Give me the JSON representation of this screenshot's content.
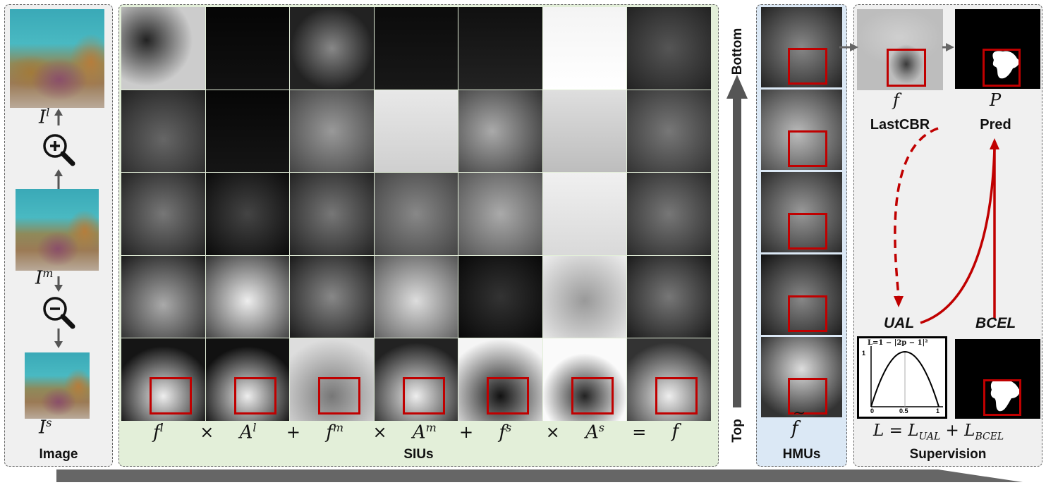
{
  "image_panel": {
    "caption": "Image",
    "labels": {
      "large": "I",
      "large_sup": "l",
      "medium": "I",
      "medium_sup": "m",
      "small": "I",
      "small_sup": "s"
    },
    "icons": [
      "zoom-in-icon",
      "zoom-out-icon"
    ]
  },
  "sius_panel": {
    "caption": "SIUs",
    "equation": [
      {
        "t": "f",
        "s": "l"
      },
      {
        "t": "×"
      },
      {
        "t": "A",
        "s": "l"
      },
      {
        "t": "+"
      },
      {
        "t": "f",
        "s": "m"
      },
      {
        "t": "×"
      },
      {
        "t": "A",
        "s": "m"
      },
      {
        "t": "+"
      },
      {
        "t": "f",
        "s": "s"
      },
      {
        "t": "×"
      },
      {
        "t": "A",
        "s": "s"
      },
      {
        "t": "="
      },
      {
        "t": "f"
      }
    ]
  },
  "axis": {
    "top_label": "Top",
    "bottom_label": "Bottom"
  },
  "hmus_panel": {
    "caption": "HMUs",
    "symbol": "f",
    "tilde": "~"
  },
  "supervision_panel": {
    "caption": "Supervision",
    "feature_label": "f",
    "feature_name": "LastCBR",
    "pred_symbol": "P",
    "pred_name": "Pred",
    "ual_label": "UAL",
    "bcel_label": "BCEL",
    "plot_formula": "L=1 − |2p − 1|²",
    "plot_ticks": {
      "y_top": "1",
      "x0": "0",
      "xmid": "0.5",
      "x1": "1"
    },
    "loss_equation": {
      "lhs": "L",
      "t1": "L",
      "t1_sub": "UAL",
      "t2": "L",
      "t2_sub": "BCEL"
    }
  },
  "colors": {
    "sius_bg": "#e3efd9",
    "hmus_bg": "#dbe8f5",
    "gray_bg": "#f0f0f0",
    "red": "#c00000",
    "arrow": "#555555"
  }
}
